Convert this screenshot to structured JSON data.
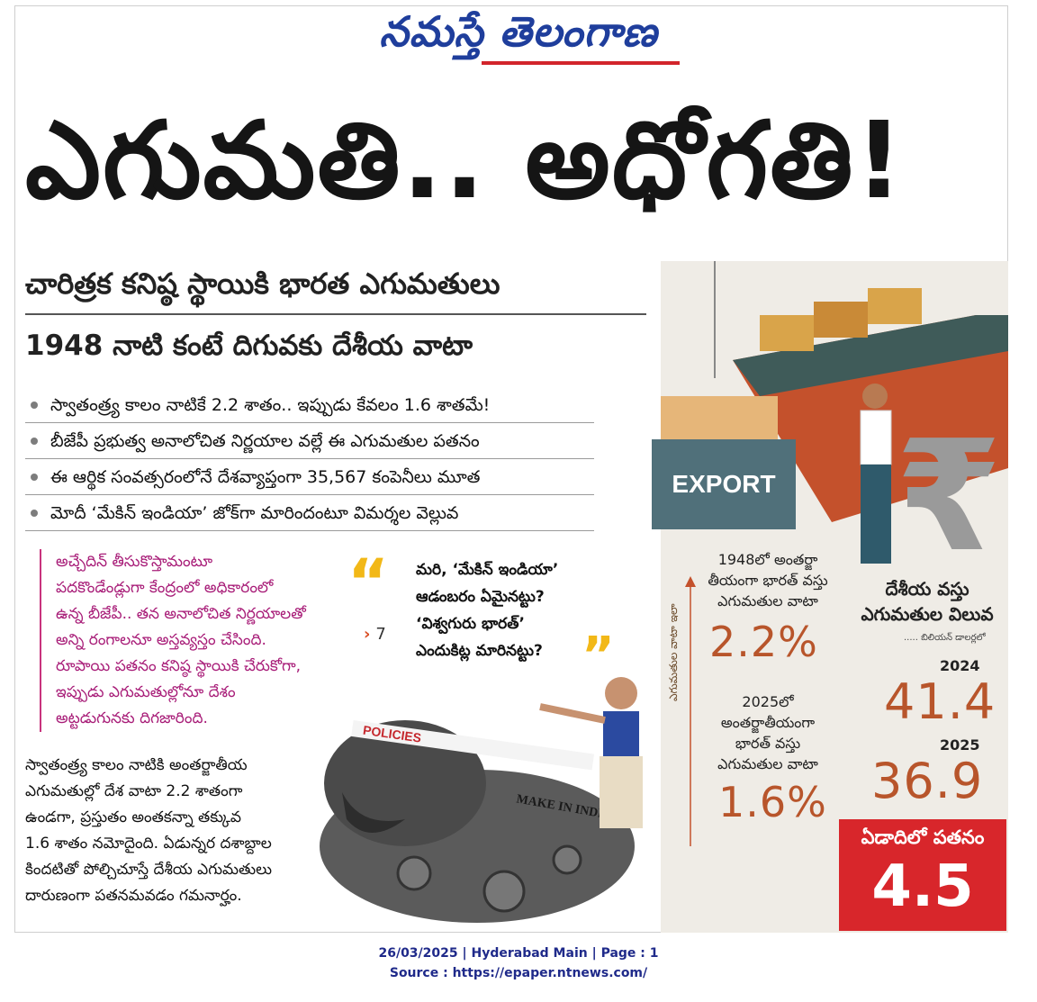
{
  "masthead": "నమస్తే తెలంగాణ",
  "headline": "ఎగుమతి.. అధోగతి!",
  "subheads": {
    "primary": "చారిత్రక కనిష్ఠ స్థాయికి భారత ఎగుమతులు",
    "secondary": "1948 నాటి కంటే దిగువకు దేశీయ వాటా"
  },
  "bullets": [
    "స్వాతంత్ర్య కాలం నాటికే 2.2 శాతం.. ఇప్పుడు కేవలం 1.6 శాతమే!",
    "బీజేపీ ప్రభుత్వ అనాలోచిత నిర్ణయాల వల్లే ఈ ఎగుమతుల పతనం",
    "ఈ ఆర్థిక సంవత్సరంలోనే దేశవ్యాప్తంగా 35,567 కంపెనీలు మూత",
    "మోదీ ‘మేకిన్ ఇండియా’ జోక్‌గా మారిందంటూ విమర్శల వెల్లువ"
  ],
  "intro_pink": [
    "అచ్చేదిన్ తీసుకొస్తామంటూ",
    "పదకొండేండ్లుగా కేంద్రంలో అధికారంలో",
    "ఉన్న బీజేపీ.. తన అనాలోచిత నిర్ణయాలతో",
    "అన్ని రంగాలనూ అస్తవ్యస్తం చేసింది.",
    "రూపాయి పతనం కనిష్ఠ స్థాయికి చేరుకోగా,",
    "ఇప్పుడు ఎగుమతుల్లోనూ దేశం",
    "అట్టడుగునకు దిగజారింది."
  ],
  "body_text": [
    "స్వాతంత్ర్య కాలం నాటికి అంతర్జాతీయ",
    "ఎగుమతుల్లో దేశ వాటా 2.2 శాతంగా",
    "ఉండగా, ప్రస్తుతం అంతకన్నా తక్కువ",
    "1.6 శాతం నమోదైంది. ఏడున్నర దశాబ్దాల",
    "కిందటితో పోల్చిచూస్తే దేశీయ ఎగుమతులు",
    "దారుణంగా పతనమవడం గమనార్హం."
  ],
  "quote": {
    "lines": [
      "మరి, ‘మేకిన్ ఇండియా’",
      "ఆడంబరం ఏమైనట్టు?",
      "‘విశ్వగురు భారత్’",
      "ఎందుకిట్ల మారినట్టు?"
    ],
    "page_ref": "7"
  },
  "illustration_labels": {
    "export": "EXPORT",
    "policies": "POLICIES",
    "make_in_india": "MAKE IN INDIA",
    "rupee": "₹"
  },
  "stats": {
    "axis_label": "ఎగుమతుల వాటా ఇలా",
    "share_1948": {
      "title": [
        "1948లో అంతర్జా",
        "తీయంగా భారత్ వస్తు",
        "ఎగుమతుల వాటా"
      ],
      "value": "2.2%"
    },
    "share_2025": {
      "title": [
        "2025లో",
        "అంతర్జాతీయంగా",
        "భారత్ వస్తు",
        "ఎగుమతుల వాటా"
      ],
      "value": "1.6%"
    },
    "value_title": [
      "దేశీయ వస్తు",
      "ఎగుమతుల విలువ"
    ],
    "unit_note": "..... బిలియన్ డాలర్లలో",
    "year_2024": "2024",
    "value_2024": "41.4",
    "year_2025": "2025",
    "value_2025": "36.9",
    "drop_label": "ఏడాదిలో పతనం",
    "drop_value": "4.5"
  },
  "colors": {
    "masthead": "#1f3e9c",
    "accent_red": "#d8262b",
    "stat_orange": "#b8552b",
    "pink_text": "#a81d78",
    "quote_yellow": "#f2b817"
  },
  "footer": {
    "line1": "26/03/2025 | Hyderabad Main | Page : 1",
    "line2": "Source : https://epaper.ntnews.com/"
  }
}
